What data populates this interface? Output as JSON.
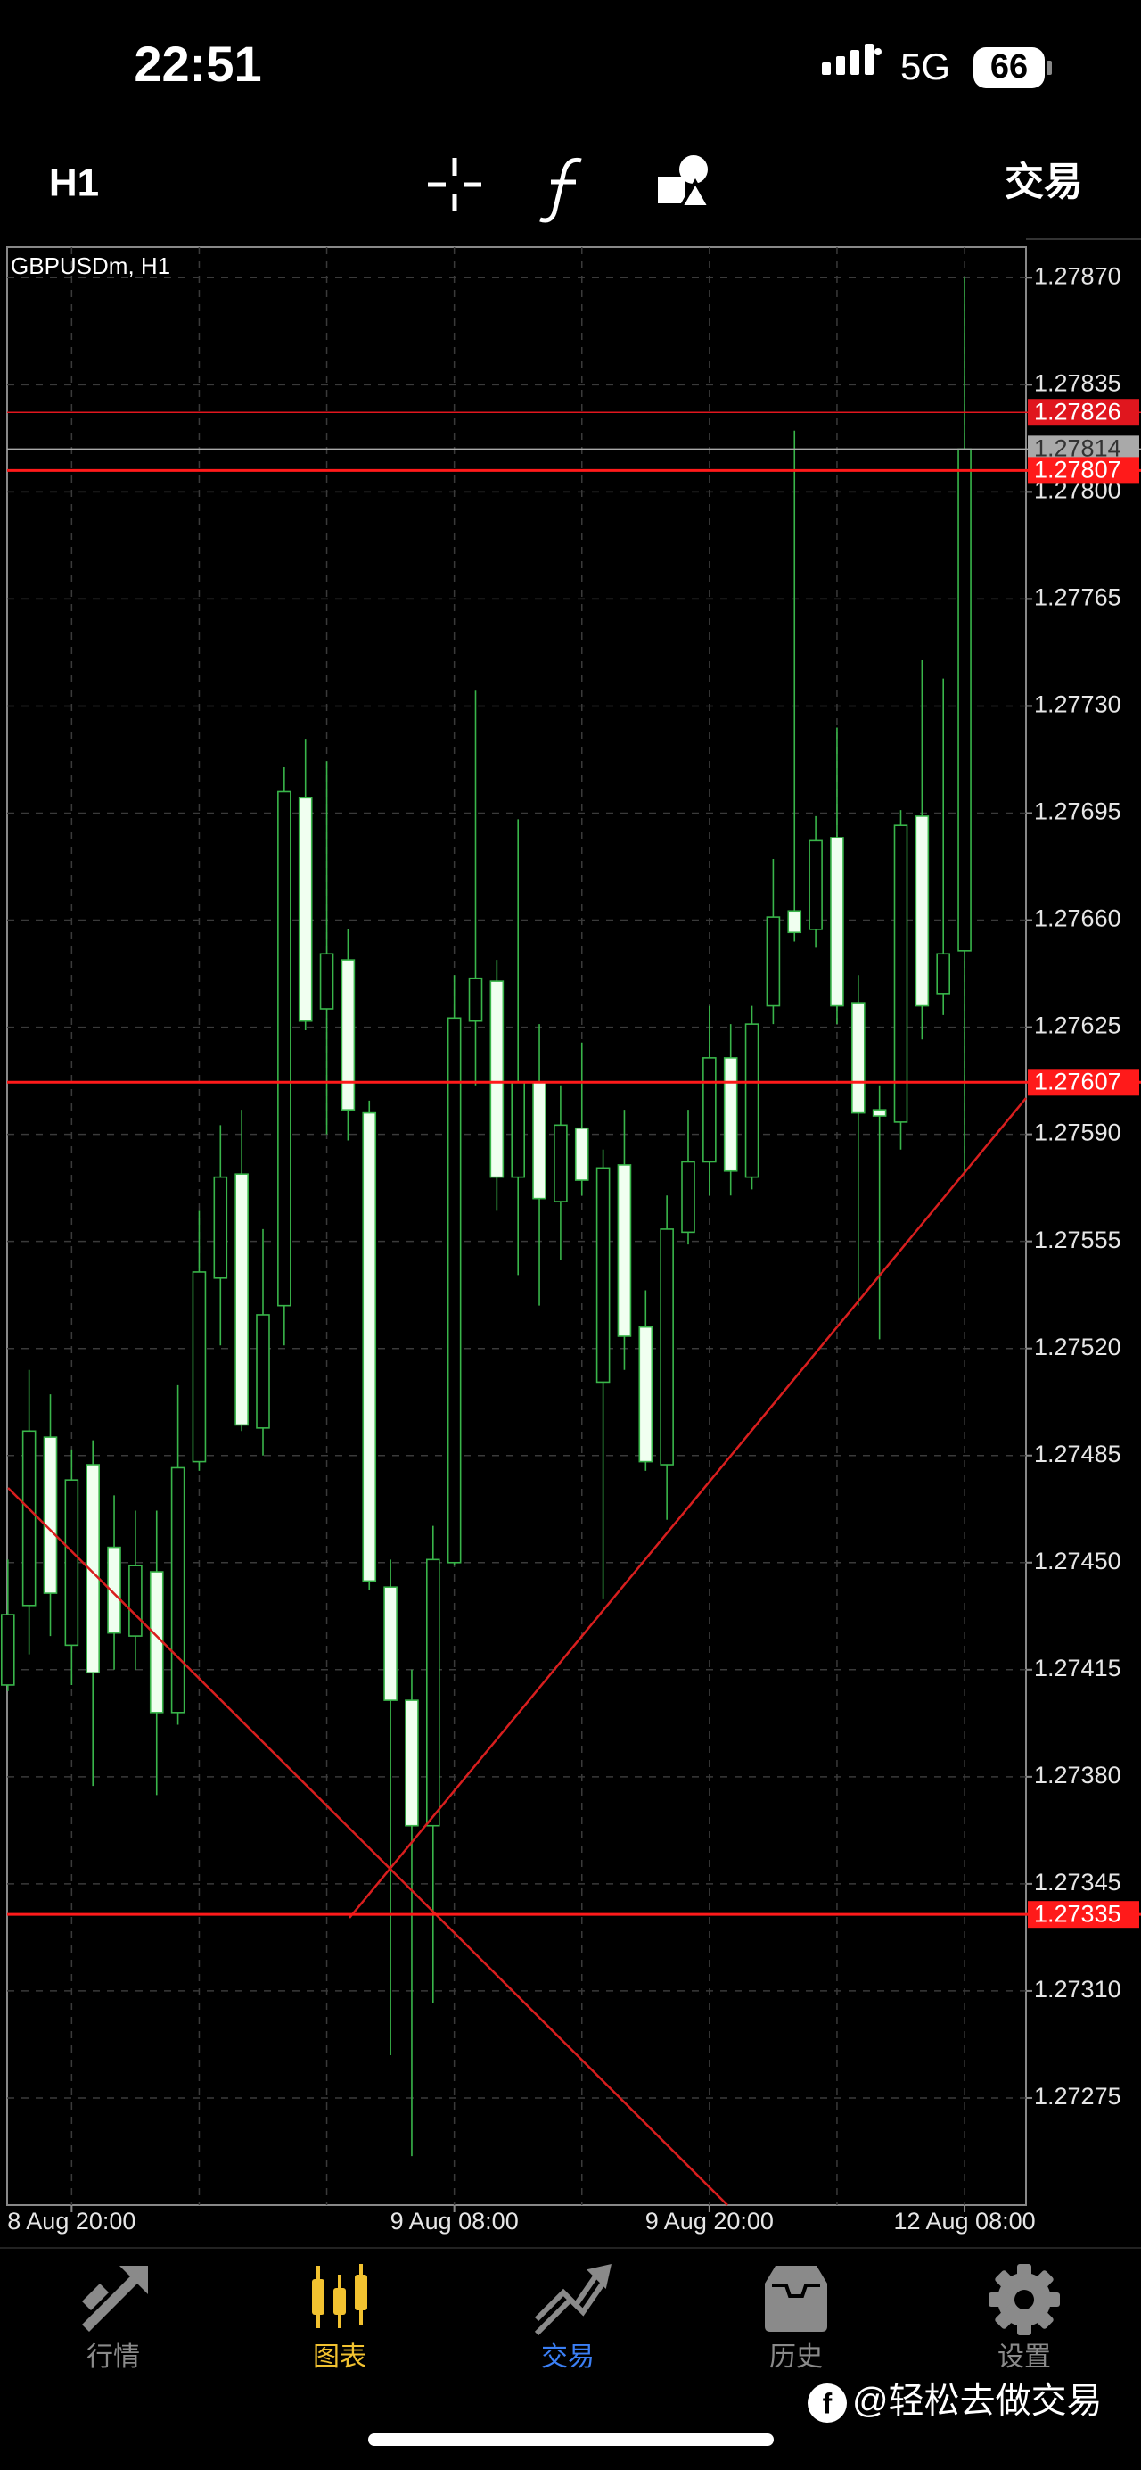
{
  "status_bar": {
    "time": "22:51",
    "network": "5G",
    "battery": "66"
  },
  "toolbar": {
    "timeframe": "H1",
    "trade": "交易"
  },
  "chart_data": {
    "type": "candlestick",
    "title": "GBPUSDm, H1",
    "categories": [
      null,
      null,
      null,
      "8 Aug 20:00",
      null,
      null,
      null,
      null,
      null,
      null,
      null,
      null,
      null,
      null,
      null,
      null,
      null,
      null,
      null,
      null,
      null,
      "9 Aug 08:00",
      null,
      null,
      null,
      null,
      null,
      null,
      null,
      null,
      null,
      null,
      null,
      "9 Aug 20:00",
      null,
      null,
      null,
      null,
      null,
      null,
      null,
      null,
      null,
      null,
      null,
      "12 Aug 08:00"
    ],
    "open": [
      1.2741,
      1.27436,
      1.27491,
      1.27423,
      1.27482,
      1.27455,
      1.27426,
      1.27447,
      1.27401,
      1.27483,
      1.27543,
      1.27577,
      1.27494,
      1.27534,
      1.277,
      1.27631,
      1.27647,
      1.27597,
      1.27442,
      1.27405,
      1.27364,
      1.2745,
      1.27627,
      1.2764,
      1.27576,
      1.27607,
      1.27568,
      1.27592,
      1.27509,
      1.2758,
      1.27527,
      1.27482,
      1.27558,
      1.27581,
      1.27615,
      1.27576,
      1.27632,
      1.27663,
      1.27657,
      1.27687,
      1.27633,
      1.27598,
      1.27594,
      1.27694,
      1.27636,
      1.2765
    ],
    "high": [
      1.27451,
      1.27513,
      1.27505,
      1.27487,
      1.2749,
      1.27472,
      1.27467,
      1.27467,
      1.27508,
      1.27565,
      1.27593,
      1.27598,
      1.27559,
      1.2771,
      1.27719,
      1.27712,
      1.27657,
      1.27601,
      1.27451,
      1.27415,
      1.27462,
      1.27642,
      1.27735,
      1.27647,
      1.27693,
      1.27626,
      1.27606,
      1.2762,
      1.27585,
      1.27598,
      1.27539,
      1.2757,
      1.27598,
      1.27632,
      1.27626,
      1.27632,
      1.2768,
      1.2782,
      1.27694,
      1.27723,
      1.27642,
      1.27606,
      1.27696,
      1.27745,
      1.27739,
      1.2787
    ],
    "low": [
      1.27408,
      1.2742,
      1.27426,
      1.2741,
      1.27377,
      1.27415,
      1.27415,
      1.27374,
      1.27397,
      1.2748,
      1.27521,
      1.27493,
      1.27485,
      1.27521,
      1.27624,
      1.2759,
      1.27588,
      1.27441,
      1.27289,
      1.27256,
      1.27306,
      1.27449,
      1.27606,
      1.27565,
      1.27544,
      1.27534,
      1.27549,
      1.2757,
      1.27438,
      1.27513,
      1.2748,
      1.27464,
      1.27554,
      1.2757,
      1.2757,
      1.27572,
      1.27626,
      1.27653,
      1.27651,
      1.27626,
      1.27534,
      1.27523,
      1.27585,
      1.27621,
      1.27629,
      1.27577
    ],
    "close": [
      1.27433,
      1.27493,
      1.2744,
      1.27477,
      1.27414,
      1.27427,
      1.27449,
      1.27401,
      1.27481,
      1.27545,
      1.27576,
      1.27495,
      1.27531,
      1.27702,
      1.27627,
      1.27649,
      1.27598,
      1.27444,
      1.27405,
      1.27364,
      1.27451,
      1.27628,
      1.27641,
      1.27576,
      1.27607,
      1.27569,
      1.27593,
      1.27575,
      1.27579,
      1.27524,
      1.27483,
      1.27559,
      1.27581,
      1.27615,
      1.27578,
      1.27626,
      1.27661,
      1.27656,
      1.27686,
      1.27632,
      1.27597,
      1.27596,
      1.27691,
      1.27632,
      1.27649,
      1.27814
    ],
    "up_color": "#39b54a",
    "down_color": "#f0fff0",
    "ylim": [
      1.2724,
      1.2788
    ],
    "yticks": [
      {
        "value": 1.2787,
        "label": "1.27870"
      },
      1.27835,
      {
        "value": 1.278,
        "label": "1.27800"
      },
      1.27765,
      {
        "value": 1.2773,
        "label": "1.27730"
      },
      1.27695,
      {
        "value": 1.2766,
        "label": "1.27660"
      },
      1.27625,
      {
        "value": 1.2759,
        "label": "1.27590"
      },
      1.27555,
      {
        "value": 1.2752,
        "label": "1.27520"
      },
      1.27485,
      {
        "value": 1.2745,
        "label": "1.27450"
      },
      1.27415,
      {
        "value": 1.2738,
        "label": "1.27380"
      },
      1.27345,
      {
        "value": 1.2731,
        "label": "1.27310"
      },
      1.27275
    ],
    "grid": true,
    "price_lines": [
      {
        "value": 1.27826,
        "color": "#e0161e"
      },
      {
        "value": 1.27814,
        "color": "#a9a9a9"
      },
      {
        "value": 1.27807,
        "color": "#ff1a1a"
      },
      {
        "value": 1.27607,
        "color": "#ff1a1a"
      },
      {
        "value": 1.27335,
        "color": "#ff1a1a"
      }
    ]
  },
  "nav": [
    {
      "label": "行情",
      "color": "#8a8a8a"
    },
    {
      "label": "图表",
      "color": "#f2c230"
    },
    {
      "label": "交易",
      "color": "#3b7ff5"
    },
    {
      "label": "历史",
      "color": "#8a8a8a"
    },
    {
      "label": "设置",
      "color": "#8a8a8a"
    }
  ],
  "watermark": "@轻松去做交易"
}
